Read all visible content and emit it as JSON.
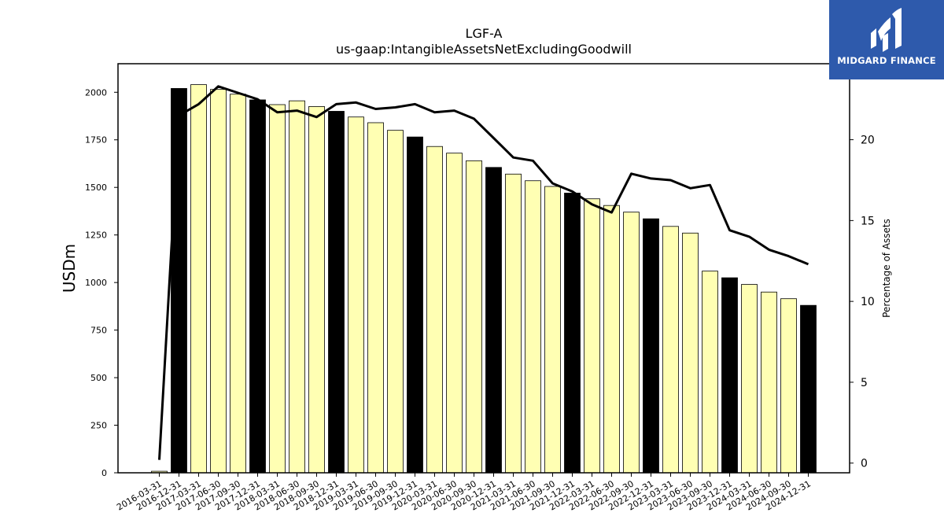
{
  "chart_data": {
    "type": "bar",
    "title": "LGF-A",
    "subtitle": "us-gaap:IntangibleAssetsNetExcludingGoodwill",
    "ylabel": "USDm",
    "y2label": "Percentage of Assets",
    "ylim": [
      0,
      2150
    ],
    "y2lim": [
      -0.6,
      24.7
    ],
    "yticks": [
      0,
      250,
      500,
      750,
      1000,
      1250,
      1500,
      1750,
      2000
    ],
    "y2ticks": [
      0,
      5,
      10,
      15,
      20
    ],
    "categories": [
      "2016-03-31",
      "2016-12-31",
      "2017-03-31",
      "2017-06-30",
      "2017-09-30",
      "2017-12-31",
      "2018-03-31",
      "2018-06-30",
      "2018-09-30",
      "2018-12-31",
      "2019-03-31",
      "2019-06-30",
      "2019-09-30",
      "2019-12-31",
      "2020-03-31",
      "2020-06-30",
      "2020-09-30",
      "2020-12-31",
      "2021-03-31",
      "2021-06-30",
      "2021-09-30",
      "2021-12-31",
      "2022-03-31",
      "2022-06-30",
      "2022-09-30",
      "2022-12-31",
      "2023-03-31",
      "2023-06-30",
      "2023-09-30",
      "2023-12-31",
      "2024-03-31",
      "2024-06-30",
      "2024-09-30",
      "2024-12-31"
    ],
    "series": [
      {
        "kind": "bar",
        "values": [
          8,
          2020,
          2040,
          2015,
          1990,
          1960,
          1935,
          1955,
          1925,
          1900,
          1870,
          1840,
          1800,
          1765,
          1715,
          1680,
          1640,
          1605,
          1570,
          1535,
          1505,
          1470,
          1440,
          1405,
          1370,
          1335,
          1295,
          1260,
          1060,
          1025,
          990,
          950,
          915,
          880
        ],
        "highlight_every_quarter_end": "12-31"
      },
      {
        "kind": "line",
        "axis": "right",
        "values": [
          0.2,
          21.5,
          22.2,
          23.3,
          22.9,
          22.5,
          21.7,
          21.8,
          21.4,
          22.2,
          22.3,
          21.9,
          22.0,
          22.2,
          21.7,
          21.8,
          21.3,
          20.1,
          18.9,
          18.7,
          17.3,
          16.8,
          16.0,
          15.5,
          17.9,
          17.6,
          17.5,
          17.0,
          17.2,
          14.4,
          14.0,
          13.2,
          12.8,
          12.3
        ]
      }
    ],
    "colors": {
      "bar": "#ffffb3",
      "bar_highlight": "#000000",
      "line": "#000000"
    },
    "grid": false
  },
  "logo": {
    "text": "MIDGARD FINANCE"
  }
}
